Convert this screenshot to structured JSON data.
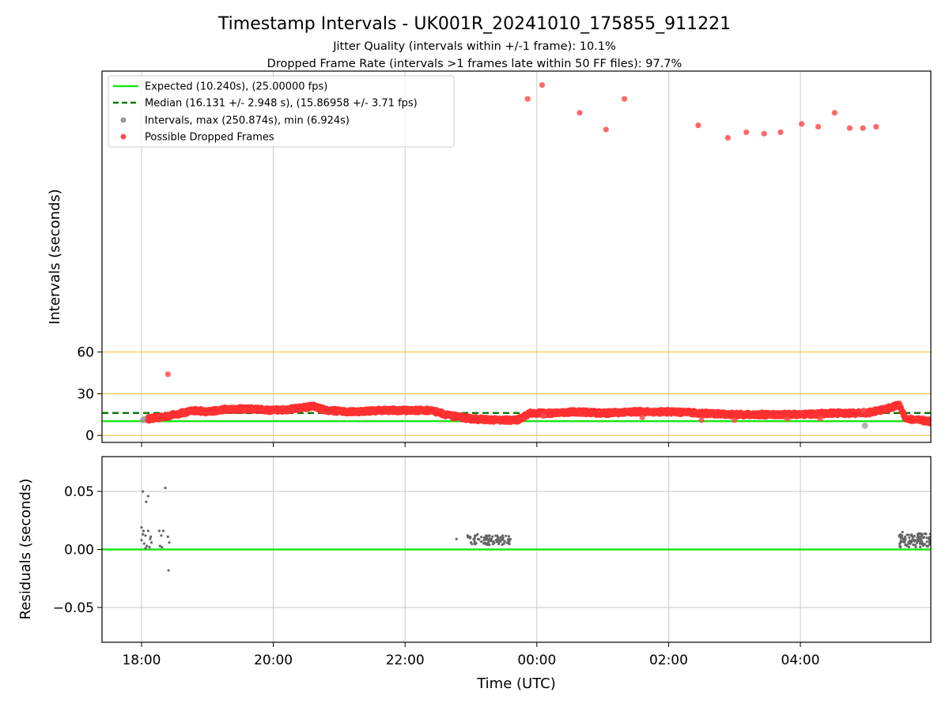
{
  "chart_data": [
    {
      "type": "scatter",
      "title": "Timestamp Intervals - UK001R_20241010_175855_911221",
      "subtitle_lines": [
        "Jitter Quality (intervals within +/-1 frame): 10.1%",
        "Dropped Frame Rate (intervals >1 frames late within 50 FF files): 97.7%"
      ],
      "xlabel": "",
      "ylabel": "Intervals (seconds)",
      "x_range_hours": [
        17.4,
        29.98
      ],
      "xticks": [
        {
          "h": 18,
          "label": ""
        },
        {
          "h": 20,
          "label": ""
        },
        {
          "h": 22,
          "label": ""
        },
        {
          "h": 24,
          "label": ""
        },
        {
          "h": 26,
          "label": ""
        },
        {
          "h": 28,
          "label": ""
        }
      ],
      "ylim": [
        -5,
        262
      ],
      "yticks": [
        0,
        30,
        60
      ],
      "grid": true,
      "reference_lines": [
        {
          "name": "expected",
          "y": 10.24,
          "color": "#19e619",
          "style": "solid"
        },
        {
          "name": "median",
          "y": 16.131,
          "color": "#0b7a0b",
          "style": "dashed"
        },
        {
          "name": "threshold-0",
          "y": 0,
          "color": "#f5c542",
          "style": "solid"
        },
        {
          "name": "threshold-30",
          "y": 30,
          "color": "#f5c542",
          "style": "solid"
        },
        {
          "name": "threshold-60",
          "y": 60,
          "color": "#f5c542",
          "style": "solid"
        }
      ],
      "legend_placement": "upper-left",
      "legend": [
        {
          "label": "Expected (10.240s), (25.00000 fps)",
          "kind": "line",
          "color": "#19e619"
        },
        {
          "label": "Median (16.131 +/- 2.948 s), (15.86958 +/- 3.71 fps)",
          "kind": "dashed",
          "color": "#0b7a0b"
        },
        {
          "label": "Intervals, max (250.874s), min (6.924s)",
          "kind": "marker",
          "color": "#999999"
        },
        {
          "label": "Possible Dropped Frames",
          "kind": "marker",
          "color": "#ff4d4d"
        }
      ],
      "series": [
        {
          "name": "Possible Dropped Frames",
          "color": "#ff3030",
          "trend": [
            [
              18.1,
              12
            ],
            [
              18.3,
              13
            ],
            [
              18.6,
              16
            ],
            [
              18.8,
              18
            ],
            [
              19.0,
              17
            ],
            [
              19.3,
              19
            ],
            [
              19.7,
              19
            ],
            [
              20.0,
              18
            ],
            [
              20.3,
              19
            ],
            [
              20.6,
              21
            ],
            [
              20.8,
              18
            ],
            [
              21.2,
              17
            ],
            [
              21.6,
              18
            ],
            [
              22.0,
              18
            ],
            [
              22.4,
              18
            ],
            [
              22.7,
              14
            ],
            [
              23.0,
              12
            ],
            [
              23.4,
              11
            ],
            [
              23.7,
              11
            ],
            [
              23.9,
              16
            ],
            [
              24.2,
              16
            ],
            [
              24.6,
              17
            ],
            [
              25.0,
              16
            ],
            [
              25.5,
              17
            ],
            [
              26.0,
              17
            ],
            [
              26.5,
              16
            ],
            [
              27.0,
              15
            ],
            [
              27.5,
              15
            ],
            [
              28.0,
              15
            ],
            [
              28.5,
              16
            ],
            [
              29.0,
              16
            ],
            [
              29.3,
              19
            ],
            [
              29.5,
              22
            ],
            [
              29.6,
              12
            ],
            [
              29.8,
              11
            ],
            [
              29.98,
              10
            ]
          ],
          "outliers": [
            [
              18.4,
              44
            ],
            [
              23.86,
              242
            ],
            [
              24.08,
              252
            ],
            [
              24.65,
              232
            ],
            [
              25.05,
              220
            ],
            [
              25.33,
              242
            ],
            [
              26.45,
              223
            ],
            [
              26.9,
              214
            ],
            [
              27.18,
              218
            ],
            [
              27.45,
              217
            ],
            [
              27.7,
              218
            ],
            [
              28.02,
              224
            ],
            [
              28.27,
              222
            ],
            [
              28.52,
              232
            ],
            [
              28.75,
              221
            ],
            [
              28.95,
              221
            ],
            [
              29.15,
              222
            ],
            [
              28.96,
              18
            ],
            [
              24.1,
              14
            ],
            [
              25.6,
              13
            ],
            [
              26.5,
              11
            ],
            [
              27.0,
              11
            ],
            [
              27.8,
              12
            ],
            [
              28.3,
              12
            ]
          ]
        },
        {
          "name": "Intervals",
          "color": "#999999",
          "points": [
            [
              18.02,
              11
            ],
            [
              18.05,
              12
            ],
            [
              18.08,
              11
            ],
            [
              22.8,
              13
            ],
            [
              23.0,
              11
            ],
            [
              28.98,
              7
            ]
          ]
        }
      ]
    },
    {
      "type": "scatter",
      "title": "",
      "xlabel": "Time (UTC)",
      "ylabel": "Residuals (seconds)",
      "x_range_hours": [
        17.4,
        29.98
      ],
      "xticks": [
        {
          "h": 18,
          "label": "18:00"
        },
        {
          "h": 20,
          "label": "20:00"
        },
        {
          "h": 22,
          "label": "22:00"
        },
        {
          "h": 24,
          "label": "00:00"
        },
        {
          "h": 26,
          "label": "02:00"
        },
        {
          "h": 28,
          "label": "04:00"
        }
      ],
      "ylim": [
        -0.08,
        0.08
      ],
      "yticks": [
        {
          "v": 0.05,
          "label": "0.05"
        },
        {
          "v": 0.0,
          "label": "0.00"
        },
        {
          "v": -0.05,
          "label": "−0.05"
        }
      ],
      "grid": true,
      "reference_lines": [
        {
          "name": "zero",
          "y": 0.0,
          "color": "#19e619",
          "style": "solid"
        }
      ],
      "series": [
        {
          "name": "Residuals",
          "color": "#666666",
          "points": [
            [
              18.02,
              0.05
            ],
            [
              18.07,
              0.041
            ],
            [
              18.1,
              0.046
            ],
            [
              18.36,
              0.053
            ],
            [
              18.0,
              0.019
            ],
            [
              18.03,
              0.016
            ],
            [
              18.06,
              0.012
            ],
            [
              18.1,
              0.016
            ],
            [
              18.14,
              0.011
            ],
            [
              18.0,
              0.008
            ],
            [
              18.04,
              0.005
            ],
            [
              18.08,
              0.003
            ],
            [
              18.12,
              0.002
            ],
            [
              18.02,
              0.013
            ],
            [
              18.15,
              0.006
            ],
            [
              18.27,
              0.016
            ],
            [
              18.3,
              0.012
            ],
            [
              18.33,
              0.016
            ],
            [
              18.28,
              0.003
            ],
            [
              18.31,
              0.002
            ],
            [
              18.4,
              0.011
            ],
            [
              18.42,
              0.006
            ],
            [
              18.41,
              -0.018
            ],
            [
              18.06,
              0.001
            ],
            [
              18.13,
              0.009
            ]
          ],
          "clusters": [
            {
              "x_range": [
                22.95,
                23.6
              ],
              "y_range": [
                0.004,
                0.012
              ],
              "count": 90
            },
            {
              "x_range": [
                29.5,
                29.98
              ],
              "y_range": [
                0.002,
                0.014
              ],
              "count": 110
            }
          ],
          "extra_points": [
            [
              22.78,
              0.009
            ],
            [
              22.95,
              0.012
            ],
            [
              23.0,
              0.006
            ],
            [
              23.1,
              0.013
            ],
            [
              23.28,
              0.004
            ],
            [
              29.55,
              0.015
            ],
            [
              29.62,
              0.003
            ]
          ]
        }
      ]
    }
  ]
}
